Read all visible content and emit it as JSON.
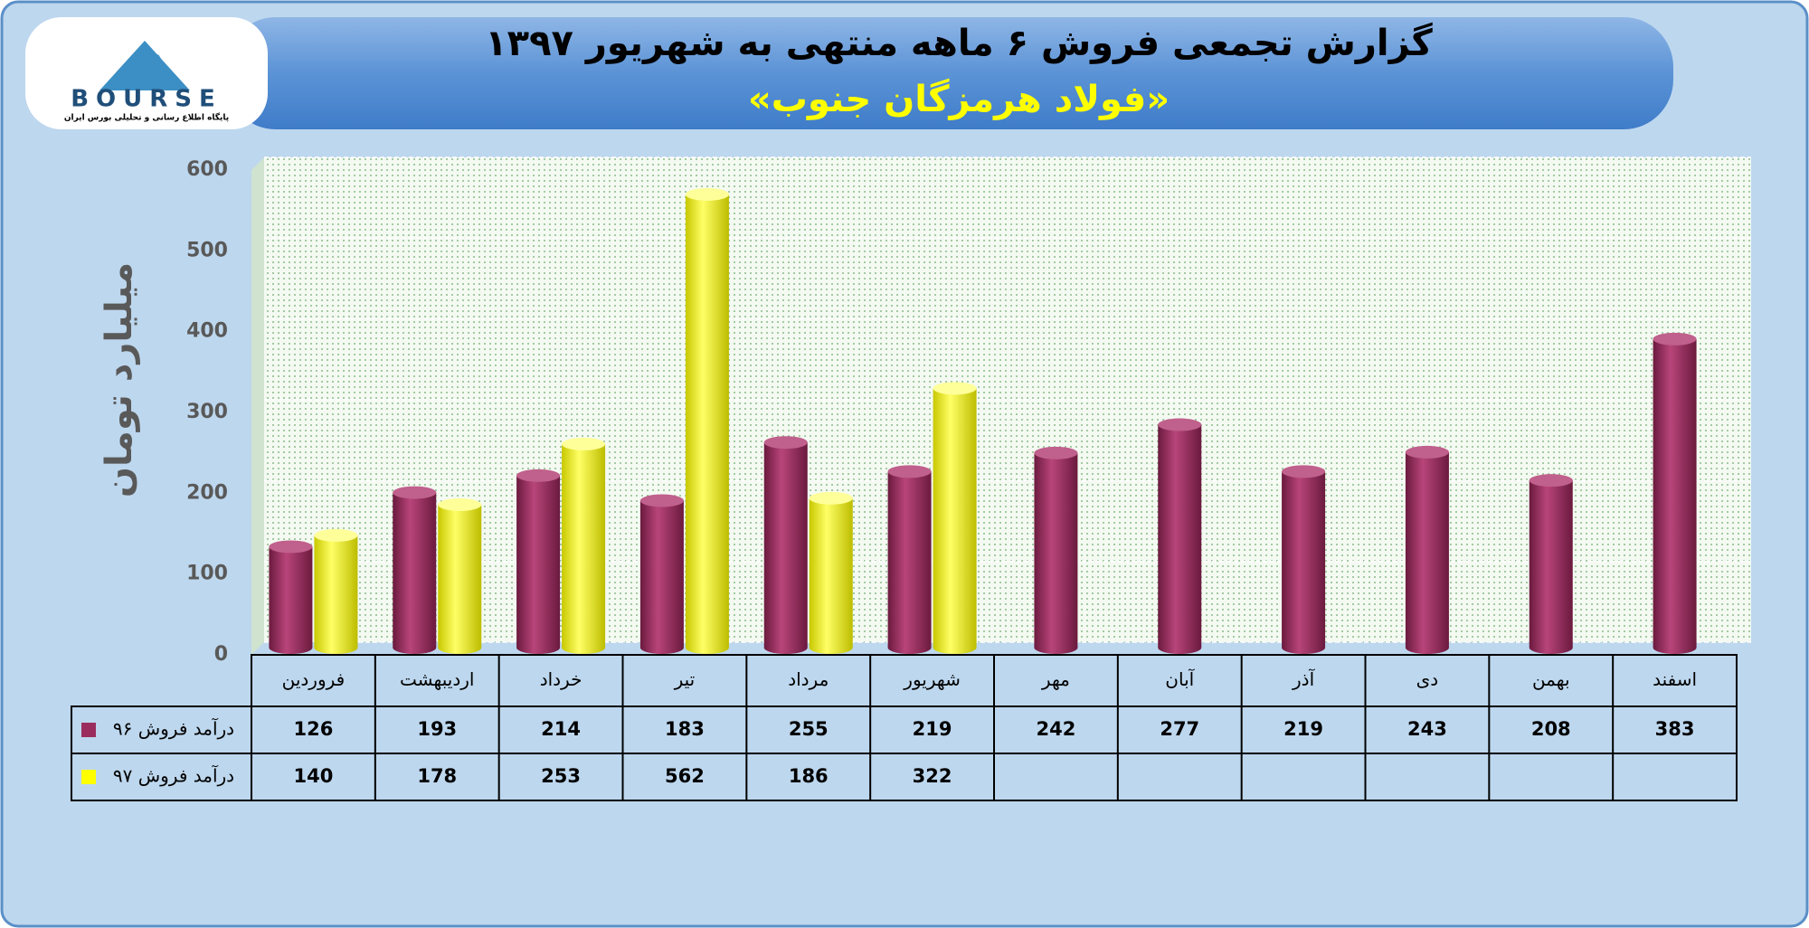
{
  "logo": {
    "text": "BOURSE",
    "tagline": "پایگاه اطلاع رسانی و تحلیلی بورس ایران"
  },
  "chart_data": {
    "type": "bar",
    "title": "گزارش تجمعی فروش ۶ ماهه منتهی به شهریور ۱۳۹۷",
    "subtitle": "«فولاد هرمزگان جنوب»",
    "y_label": "میلیارد تومان",
    "categories": [
      "فروردین",
      "اردیبهشت",
      "خرداد",
      "تیر",
      "مرداد",
      "شهریور",
      "مهر",
      "آبان",
      "آذر",
      "دی",
      "بهمن",
      "اسفند"
    ],
    "series": [
      {
        "name": "درآمد فروش ۹۶",
        "color": "#9b2d5e",
        "values": [
          126,
          193,
          214,
          183,
          255,
          219,
          242,
          277,
          219,
          243,
          208,
          383
        ]
      },
      {
        "name": "درآمد فروش ۹۷",
        "color": "#ffff00",
        "values": [
          140,
          178,
          253,
          562,
          186,
          322,
          null,
          null,
          null,
          null,
          null,
          null
        ]
      }
    ],
    "ylim": [
      0,
      600
    ],
    "yticks": [
      0,
      100,
      200,
      300,
      400,
      500,
      600
    ],
    "grid": true
  }
}
